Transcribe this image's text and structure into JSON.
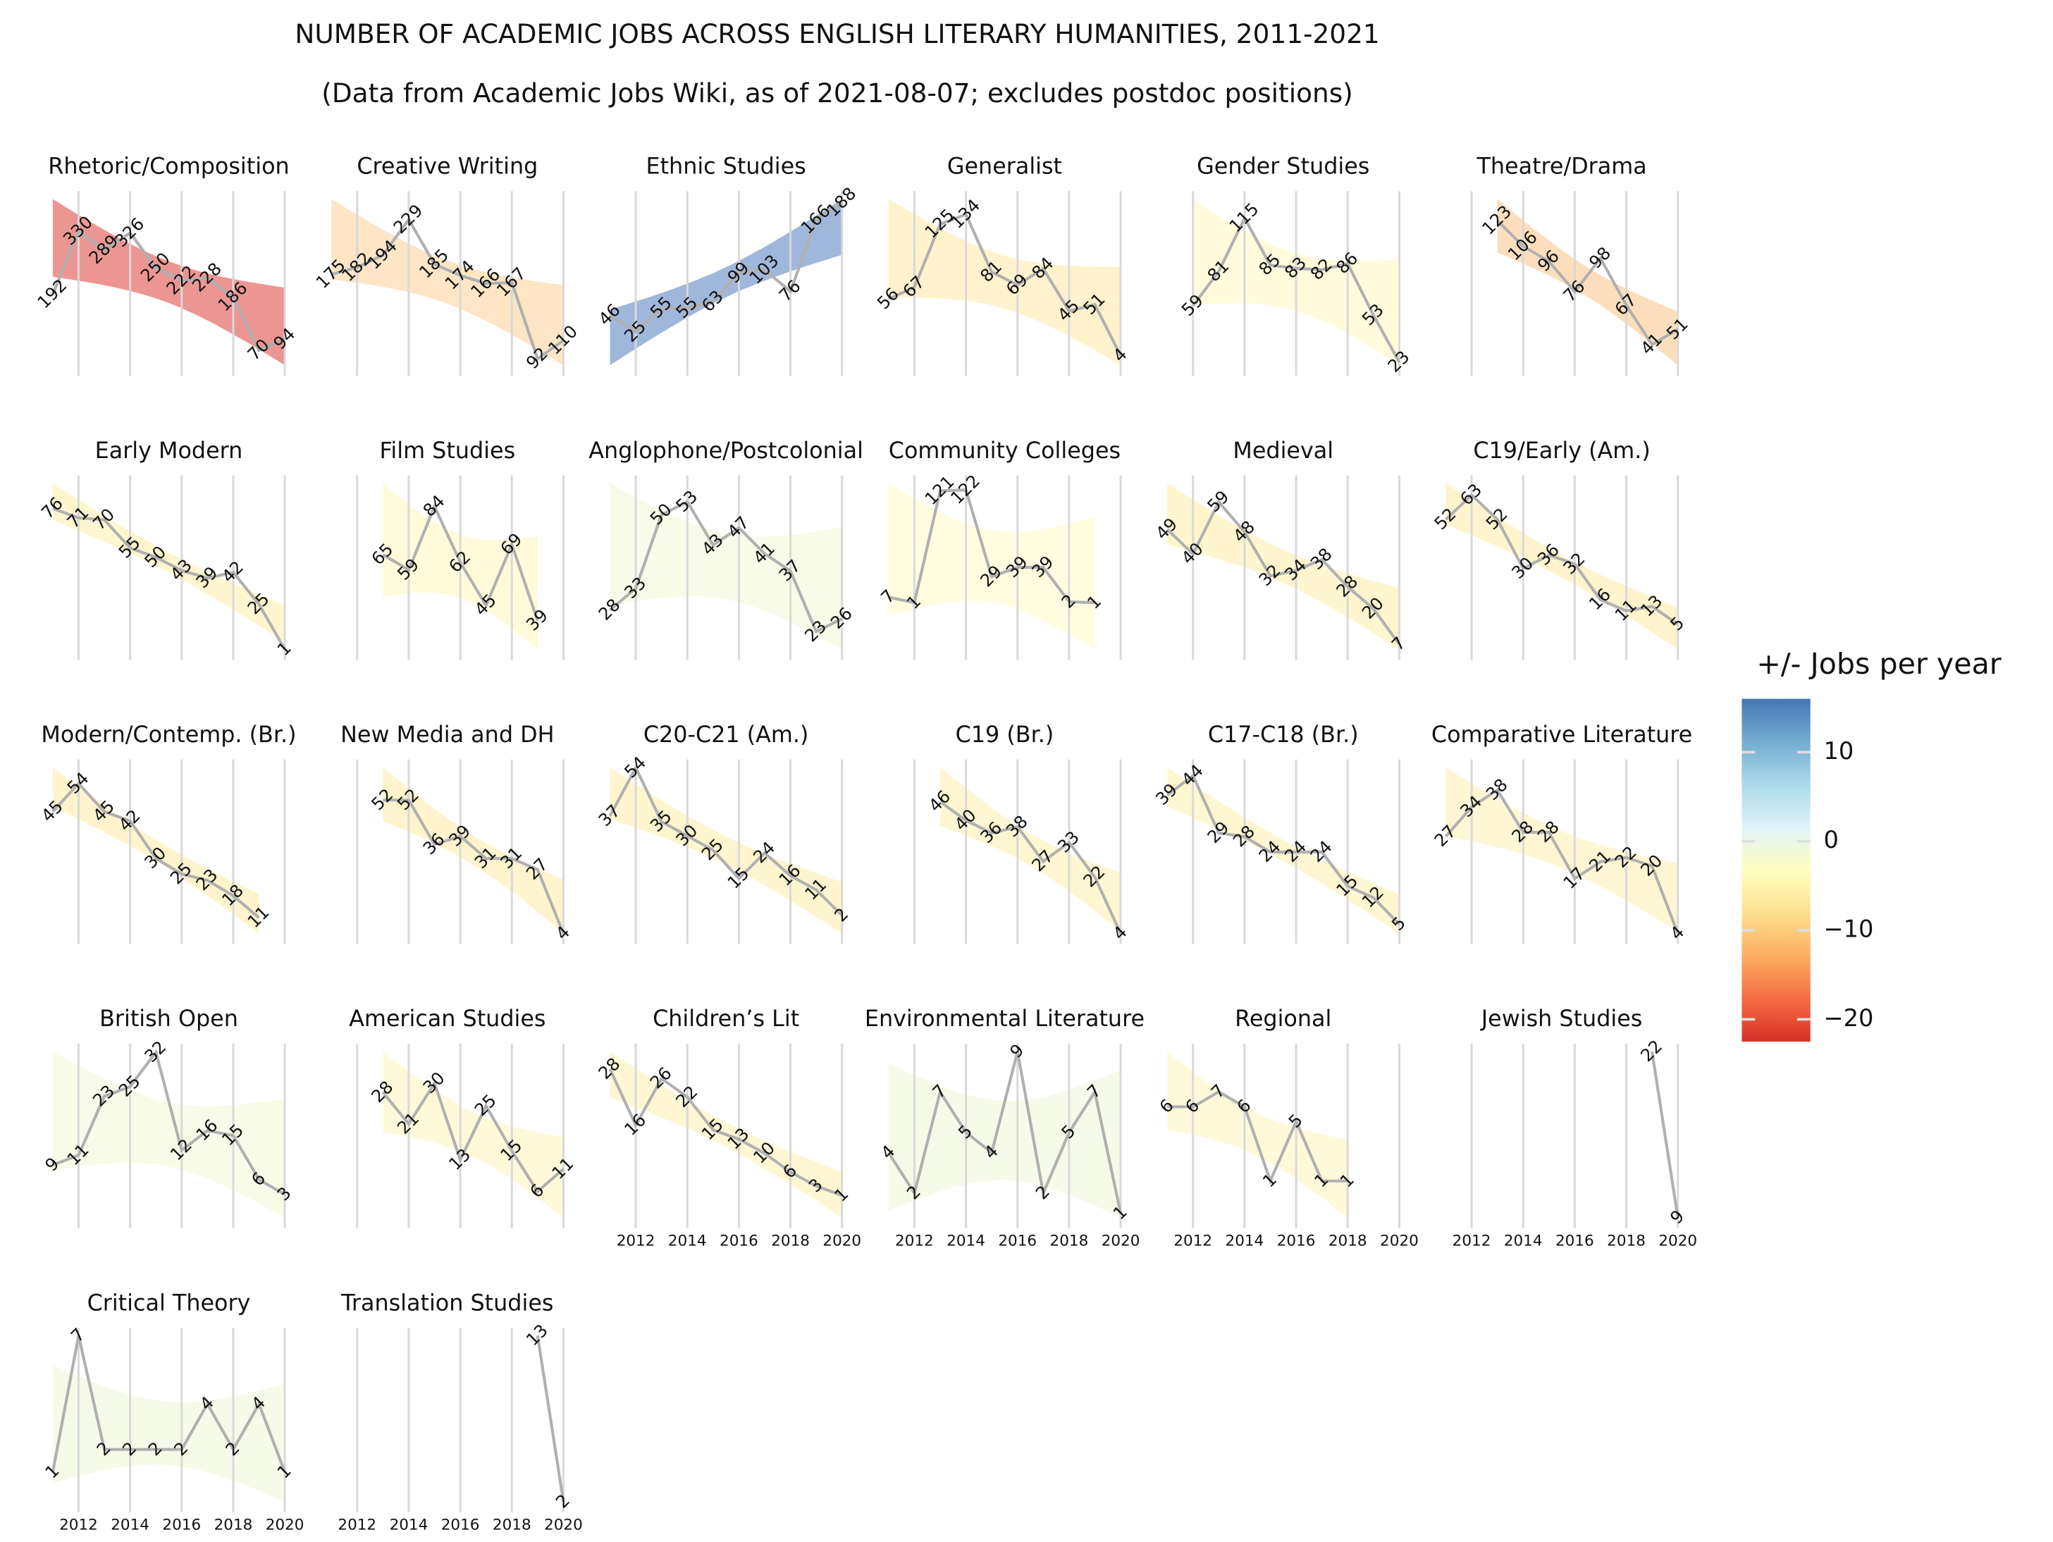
{
  "title": "NUMBER OF ACADEMIC JOBS ACROSS ENGLISH LITERARY HUMANITIES, 2011-2021",
  "subtitle": "(Data from Academic Jobs Wiki, as of 2021-08-07; excludes postdoc positions)",
  "colorbar": {
    "title": "+/- Jobs per year",
    "lim": [
      -22.5,
      16
    ],
    "colors": [
      "#d73027",
      "#f46d43",
      "#fdae61",
      "#fee090",
      "#ffffbf",
      "#e0f3f8",
      "#abd9e9",
      "#74add1",
      "#4575b4"
    ],
    "ticks": [
      {
        "value": -20,
        "label": "−20"
      },
      {
        "value": -10,
        "label": "−10"
      },
      0,
      10
    ]
  },
  "chart_data": [
    {
      "type": "line",
      "title": "Rhetoric/Composition",
      "x": [
        2011,
        2012,
        2013,
        2014,
        2015,
        2016,
        2017,
        2018,
        2019,
        2020
      ],
      "values": [
        192,
        330,
        289,
        326,
        250,
        222,
        228,
        186,
        70,
        94
      ],
      "color": "#e8847f",
      "line_color": "#b0b0b0",
      "xlim": [
        2011,
        2020
      ],
      "xticks": [
        2012,
        2014,
        2016,
        2018,
        2020
      ],
      "xtick_labels": false
    },
    {
      "type": "line",
      "title": "Creative Writing",
      "x": [
        2011,
        2012,
        2013,
        2014,
        2015,
        2016,
        2017,
        2018,
        2019,
        2020
      ],
      "values": [
        175,
        182,
        194,
        229,
        185,
        174,
        166,
        167,
        92,
        110
      ],
      "color": "#fde1bb",
      "line_color": "#b0b0b0",
      "xlim": [
        2011,
        2020
      ],
      "xticks": [
        2012,
        2014,
        2016,
        2018,
        2020
      ],
      "xtick_labels": false
    },
    {
      "type": "line",
      "title": "Ethnic Studies",
      "x": [
        2011,
        2012,
        2013,
        2014,
        2015,
        2016,
        2017,
        2018,
        2019,
        2020
      ],
      "values": [
        46,
        25,
        55,
        55,
        63,
        99,
        103,
        76,
        166,
        188
      ],
      "color": "#8eaad4",
      "line_color": "#b0b0b0",
      "xlim": [
        2011,
        2020
      ],
      "xticks": [
        2012,
        2014,
        2016,
        2018,
        2020
      ],
      "xtick_labels": false
    },
    {
      "type": "line",
      "title": "Generalist",
      "x": [
        2011,
        2012,
        2013,
        2014,
        2015,
        2016,
        2017,
        2018,
        2019,
        2020
      ],
      "values": [
        56,
        67,
        125,
        134,
        81,
        69,
        84,
        45,
        51,
        4
      ],
      "color": "#fff0c4",
      "line_color": "#b0b0b0",
      "xlim": [
        2011,
        2020
      ],
      "xticks": [
        2012,
        2014,
        2016,
        2018,
        2020
      ],
      "xtick_labels": false
    },
    {
      "type": "line",
      "title": "Gender Studies",
      "x": [
        2011,
        2012,
        2013,
        2014,
        2015,
        2016,
        2017,
        2018,
        2019,
        2020
      ],
      "values": [
        null,
        59,
        81,
        115,
        85,
        83,
        82,
        86,
        53,
        23
      ],
      "color": "#fffad6",
      "line_color": "#b0b0b0",
      "xlim": [
        2011,
        2020
      ],
      "xticks": [
        2012,
        2014,
        2016,
        2018,
        2020
      ],
      "xtick_labels": false
    },
    {
      "type": "line",
      "title": "Theatre/Drama",
      "x": [
        2011,
        2012,
        2013,
        2014,
        2015,
        2016,
        2017,
        2018,
        2019,
        2020
      ],
      "values": [
        null,
        null,
        123,
        106,
        96,
        76,
        98,
        67,
        41,
        51
      ],
      "color": "#fdd8b0",
      "line_color": "#b0b0b0",
      "xlim": [
        2011,
        2020
      ],
      "xticks": [
        2012,
        2014,
        2016,
        2018,
        2020
      ],
      "xtick_labels": false
    },
    {
      "type": "line",
      "title": "Early Modern",
      "x": [
        2011,
        2012,
        2013,
        2014,
        2015,
        2016,
        2017,
        2018,
        2019,
        2020
      ],
      "values": [
        76,
        71,
        70,
        55,
        50,
        43,
        39,
        42,
        25,
        1
      ],
      "color": "#fff4c8",
      "line_color": "#b0b0b0",
      "xlim": [
        2011,
        2020
      ],
      "xticks": [
        2012,
        2014,
        2016,
        2018,
        2020
      ],
      "xtick_labels": false
    },
    {
      "type": "line",
      "title": "Film Studies",
      "x": [
        2011,
        2012,
        2013,
        2014,
        2015,
        2016,
        2017,
        2018,
        2019,
        2020
      ],
      "values": [
        null,
        null,
        65,
        59,
        84,
        62,
        45,
        69,
        39,
        null
      ],
      "color": "#fffad4",
      "line_color": "#b0b0b0",
      "xlim": [
        2011,
        2020
      ],
      "xticks": [
        2012,
        2014,
        2016,
        2018,
        2020
      ],
      "xtick_labels": false
    },
    {
      "type": "line",
      "title": "Anglophone/Postcolonial",
      "x": [
        2011,
        2012,
        2013,
        2014,
        2015,
        2016,
        2017,
        2018,
        2019,
        2020
      ],
      "values": [
        28,
        33,
        50,
        53,
        43,
        47,
        41,
        37,
        23,
        26
      ],
      "color": "#f6fae3",
      "line_color": "#b0b0b0",
      "xlim": [
        2011,
        2020
      ],
      "xticks": [
        2012,
        2014,
        2016,
        2018,
        2020
      ],
      "xtick_labels": false
    },
    {
      "type": "line",
      "title": "Community Colleges",
      "x": [
        2011,
        2012,
        2013,
        2014,
        2015,
        2016,
        2017,
        2018,
        2019,
        2020
      ],
      "values": [
        7,
        1,
        121,
        122,
        29,
        39,
        39,
        2,
        1,
        null
      ],
      "color": "#fffbda",
      "line_color": "#b0b0b0",
      "xlim": [
        2011,
        2020
      ],
      "xticks": [
        2012,
        2014,
        2016,
        2018,
        2020
      ],
      "xtick_labels": false
    },
    {
      "type": "line",
      "title": "Medieval",
      "x": [
        2011,
        2012,
        2013,
        2014,
        2015,
        2016,
        2017,
        2018,
        2019,
        2020
      ],
      "values": [
        49,
        40,
        59,
        48,
        32,
        34,
        38,
        28,
        20,
        7
      ],
      "color": "#fff3c6",
      "line_color": "#b0b0b0",
      "xlim": [
        2011,
        2020
      ],
      "xticks": [
        2012,
        2014,
        2016,
        2018,
        2020
      ],
      "xtick_labels": false
    },
    {
      "type": "line",
      "title": "C19/Early (Am.)",
      "x": [
        2011,
        2012,
        2013,
        2014,
        2015,
        2016,
        2017,
        2018,
        2019,
        2020
      ],
      "values": [
        52,
        63,
        52,
        30,
        36,
        32,
        16,
        11,
        13,
        5
      ],
      "color": "#fff2c4",
      "line_color": "#b0b0b0",
      "xlim": [
        2011,
        2020
      ],
      "xticks": [
        2012,
        2014,
        2016,
        2018,
        2020
      ],
      "xtick_labels": false
    },
    {
      "type": "line",
      "title": "Modern/Contemp. (Br.)",
      "x": [
        2011,
        2012,
        2013,
        2014,
        2015,
        2016,
        2017,
        2018,
        2019,
        2020
      ],
      "values": [
        45,
        54,
        45,
        42,
        30,
        25,
        23,
        18,
        11,
        null
      ],
      "color": "#fff2c4",
      "line_color": "#b0b0b0",
      "xlim": [
        2011,
        2020
      ],
      "xticks": [
        2012,
        2014,
        2016,
        2018,
        2020
      ],
      "xtick_labels": false
    },
    {
      "type": "line",
      "title": "New Media and DH",
      "x": [
        2011,
        2012,
        2013,
        2014,
        2015,
        2016,
        2017,
        2018,
        2019,
        2020
      ],
      "values": [
        null,
        null,
        52,
        52,
        36,
        39,
        31,
        31,
        27,
        4
      ],
      "color": "#fff2c4",
      "line_color": "#b0b0b0",
      "xlim": [
        2011,
        2020
      ],
      "xticks": [
        2012,
        2014,
        2016,
        2018,
        2020
      ],
      "xtick_labels": false
    },
    {
      "type": "line",
      "title": "C20-C21 (Am.)",
      "x": [
        2011,
        2012,
        2013,
        2014,
        2015,
        2016,
        2017,
        2018,
        2019,
        2020
      ],
      "values": [
        37,
        54,
        35,
        30,
        25,
        15,
        24,
        16,
        11,
        2
      ],
      "color": "#fff3c7",
      "line_color": "#b0b0b0",
      "xlim": [
        2011,
        2020
      ],
      "xticks": [
        2012,
        2014,
        2016,
        2018,
        2020
      ],
      "xtick_labels": false
    },
    {
      "type": "line",
      "title": "C19 (Br.)",
      "x": [
        2011,
        2012,
        2013,
        2014,
        2015,
        2016,
        2017,
        2018,
        2019,
        2020
      ],
      "values": [
        null,
        null,
        46,
        40,
        36,
        38,
        27,
        33,
        22,
        4
      ],
      "color": "#fff4ca",
      "line_color": "#b0b0b0",
      "xlim": [
        2011,
        2020
      ],
      "xticks": [
        2012,
        2014,
        2016,
        2018,
        2020
      ],
      "xtick_labels": false
    },
    {
      "type": "line",
      "title": "C17-C18 (Br.)",
      "x": [
        2011,
        2012,
        2013,
        2014,
        2015,
        2016,
        2017,
        2018,
        2019,
        2020
      ],
      "values": [
        39,
        44,
        29,
        28,
        24,
        24,
        24,
        15,
        12,
        5
      ],
      "color": "#fff4ca",
      "line_color": "#b0b0b0",
      "xlim": [
        2011,
        2020
      ],
      "xticks": [
        2012,
        2014,
        2016,
        2018,
        2020
      ],
      "xtick_labels": false
    },
    {
      "type": "line",
      "title": "Comparative Literature",
      "x": [
        2011,
        2012,
        2013,
        2014,
        2015,
        2016,
        2017,
        2018,
        2019,
        2020
      ],
      "values": [
        27,
        34,
        38,
        28,
        28,
        17,
        21,
        22,
        20,
        4
      ],
      "color": "#fff5cc",
      "line_color": "#b0b0b0",
      "xlim": [
        2011,
        2020
      ],
      "xticks": [
        2012,
        2014,
        2016,
        2018,
        2020
      ],
      "xtick_labels": false
    },
    {
      "type": "line",
      "title": "British Open",
      "x": [
        2011,
        2012,
        2013,
        2014,
        2015,
        2016,
        2017,
        2018,
        2019,
        2020
      ],
      "values": [
        9,
        11,
        23,
        25,
        32,
        12,
        16,
        15,
        6,
        3
      ],
      "color": "#f6fae3",
      "line_color": "#b0b0b0",
      "xlim": [
        2011,
        2020
      ],
      "xticks": [
        2012,
        2014,
        2016,
        2018,
        2020
      ],
      "xtick_labels": false
    },
    {
      "type": "line",
      "title": "American Studies",
      "x": [
        2011,
        2012,
        2013,
        2014,
        2015,
        2016,
        2017,
        2018,
        2019,
        2020
      ],
      "values": [
        null,
        null,
        28,
        21,
        30,
        13,
        25,
        15,
        6,
        11
      ],
      "color": "#fff8d2",
      "line_color": "#b0b0b0",
      "xlim": [
        2011,
        2020
      ],
      "xticks": [
        2012,
        2014,
        2016,
        2018,
        2020
      ],
      "xtick_labels": false
    },
    {
      "type": "line",
      "title": "Children’s Lit",
      "x": [
        2011,
        2012,
        2013,
        2014,
        2015,
        2016,
        2017,
        2018,
        2019,
        2020
      ],
      "values": [
        28,
        16,
        26,
        22,
        15,
        13,
        10,
        6,
        3,
        1
      ],
      "color": "#fff5cc",
      "line_color": "#b0b0b0",
      "xlim": [
        2011,
        2020
      ],
      "xticks": [
        2012,
        2014,
        2016,
        2018,
        2020
      ],
      "xtick_labels": true
    },
    {
      "type": "line",
      "title": "Environmental Literature",
      "x": [
        2011,
        2012,
        2013,
        2014,
        2015,
        2016,
        2017,
        2018,
        2019,
        2020
      ],
      "values": [
        4,
        2,
        7,
        5,
        4,
        9,
        2,
        5,
        7,
        1
      ],
      "color": "#f4f9e5",
      "line_color": "#b0b0b0",
      "xlim": [
        2011,
        2020
      ],
      "xticks": [
        2012,
        2014,
        2016,
        2018,
        2020
      ],
      "xtick_labels": true
    },
    {
      "type": "line",
      "title": "Regional",
      "x": [
        2011,
        2012,
        2013,
        2014,
        2015,
        2016,
        2017,
        2018,
        2019,
        2020
      ],
      "values": [
        6,
        6,
        7,
        6,
        1,
        5,
        1,
        1,
        null,
        null
      ],
      "color": "#fff8d2",
      "line_color": "#b0b0b0",
      "xlim": [
        2011,
        2020
      ],
      "xticks": [
        2012,
        2014,
        2016,
        2018,
        2020
      ],
      "xtick_labels": true
    },
    {
      "type": "line",
      "title": "Jewish Studies",
      "x": [
        2011,
        2012,
        2013,
        2014,
        2015,
        2016,
        2017,
        2018,
        2019,
        2020
      ],
      "values": [
        null,
        null,
        null,
        null,
        null,
        null,
        null,
        null,
        22,
        9
      ],
      "line_color": "#b0b0b0",
      "xlim": [
        2011,
        2020
      ],
      "xticks": [
        2012,
        2014,
        2016,
        2018,
        2020
      ],
      "xtick_labels": true
    },
    {
      "type": "line",
      "title": "Critical Theory",
      "x": [
        2011,
        2012,
        2013,
        2014,
        2015,
        2016,
        2017,
        2018,
        2019,
        2020
      ],
      "values": [
        1,
        7,
        2,
        2,
        2,
        2,
        4,
        2,
        4,
        1
      ],
      "color": "#f4f9e5",
      "line_color": "#b0b0b0",
      "xlim": [
        2011,
        2020
      ],
      "xticks": [
        2012,
        2014,
        2016,
        2018,
        2020
      ],
      "xtick_labels": true
    },
    {
      "type": "line",
      "title": "Translation Studies",
      "x": [
        2011,
        2012,
        2013,
        2014,
        2015,
        2016,
        2017,
        2018,
        2019,
        2020
      ],
      "values": [
        null,
        null,
        null,
        null,
        null,
        null,
        null,
        null,
        13,
        2
      ],
      "line_color": "#b0b0b0",
      "xlim": [
        2011,
        2020
      ],
      "xticks": [
        2012,
        2014,
        2016,
        2018,
        2020
      ],
      "xtick_labels": true
    }
  ]
}
